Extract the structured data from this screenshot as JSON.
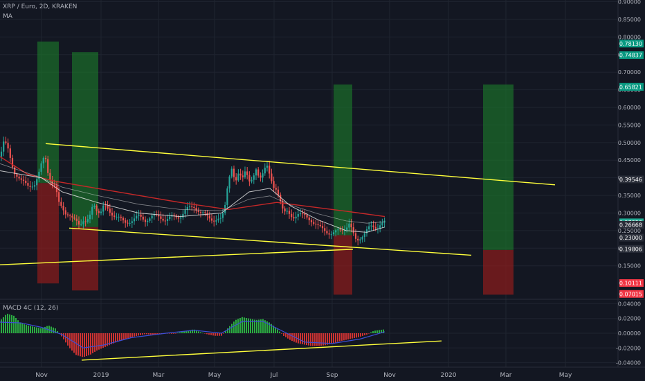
{
  "header": {
    "title": "XRP / Euro, 2D, KRAKEN",
    "ma_label": "MA",
    "macd_label": "MACD 4C (12, 26)"
  },
  "colors": {
    "background": "#131722",
    "grid": "#1f2430",
    "axis_text": "#b2b5be",
    "candle_up": "#26a69a",
    "candle_down": "#ef5350",
    "trendline": "#ffff3b",
    "ma_slow": "#c62828",
    "ma_fast": "#e0e0e0",
    "target_box": "#1b7a2a",
    "stop_box": "#8a1c1c",
    "badge_green": "#089981",
    "badge_red": "#f23645",
    "badge_teal": "#22ab94",
    "macd_up": "#2ebd45",
    "macd_down": "#e03535",
    "macd_line": "#3d4fd6"
  },
  "chart_data": [
    {
      "type": "candlestick",
      "x_axis_ticks": [
        "Nov",
        "2019",
        "Mar",
        "May",
        "Jul",
        "Sep",
        "Nov",
        "2020",
        "Mar",
        "May"
      ],
      "y_axis_ticks": [
        "0.90000",
        "0.85000",
        "0.80000",
        "0.75000",
        "0.70000",
        "0.65000",
        "0.60000",
        "0.55000",
        "0.50000",
        "0.45000",
        "0.40000",
        "0.35000",
        "0.30000",
        "0.25000",
        "0.20000",
        "0.15000"
      ],
      "ylim": [
        0.055,
        0.905
      ],
      "price_badges": [
        {
          "label": "0.78130",
          "value": 0.7813,
          "kind": "green"
        },
        {
          "label": "0.74837",
          "value": 0.74837,
          "kind": "green"
        },
        {
          "label": "0.65837",
          "value": 0.65837,
          "kind": "green"
        },
        {
          "label": "0.65821",
          "value": 0.65821,
          "kind": "green"
        },
        {
          "label": "0.39546",
          "value": 0.39546,
          "kind": "dark"
        },
        {
          "label": "0.27358",
          "value": 0.27358,
          "kind": "teal"
        },
        {
          "label": "0.26668",
          "value": 0.26668,
          "kind": "dark"
        },
        {
          "label": "0.23000",
          "value": 0.23,
          "kind": "dark"
        },
        {
          "label": "0.19806",
          "value": 0.19806,
          "kind": "dark"
        },
        {
          "label": "0.10111",
          "value": 0.10111,
          "kind": "red"
        },
        {
          "label": "0.07015",
          "value": 0.07015,
          "kind": "red"
        }
      ],
      "price_path": [
        [
          0,
          0.46
        ],
        [
          5,
          0.5
        ],
        [
          10,
          0.49
        ],
        [
          20,
          0.42
        ],
        [
          30,
          0.39
        ],
        [
          40,
          0.38
        ],
        [
          50,
          0.38
        ],
        [
          55,
          0.4
        ],
        [
          60,
          0.44
        ],
        [
          65,
          0.47
        ],
        [
          70,
          0.41
        ],
        [
          75,
          0.38
        ],
        [
          80,
          0.37
        ],
        [
          85,
          0.33
        ],
        [
          90,
          0.32
        ],
        [
          95,
          0.3
        ],
        [
          100,
          0.29
        ],
        [
          105,
          0.28
        ],
        [
          110,
          0.28
        ],
        [
          115,
          0.27
        ],
        [
          120,
          0.28
        ],
        [
          125,
          0.27
        ],
        [
          130,
          0.29
        ],
        [
          135,
          0.33
        ],
        [
          140,
          0.31
        ],
        [
          145,
          0.3
        ],
        [
          150,
          0.32
        ],
        [
          160,
          0.3
        ],
        [
          170,
          0.29
        ],
        [
          180,
          0.27
        ],
        [
          190,
          0.28
        ],
        [
          200,
          0.29
        ],
        [
          210,
          0.28
        ],
        [
          220,
          0.29
        ],
        [
          230,
          0.29
        ],
        [
          240,
          0.28
        ],
        [
          250,
          0.29
        ],
        [
          260,
          0.29
        ],
        [
          270,
          0.31
        ],
        [
          280,
          0.32
        ],
        [
          290,
          0.3
        ],
        [
          300,
          0.29
        ],
        [
          310,
          0.28
        ],
        [
          320,
          0.28
        ],
        [
          325,
          0.32
        ],
        [
          330,
          0.4
        ],
        [
          335,
          0.43
        ],
        [
          340,
          0.38
        ],
        [
          345,
          0.41
        ],
        [
          350,
          0.4
        ],
        [
          355,
          0.43
        ],
        [
          360,
          0.39
        ],
        [
          365,
          0.39
        ],
        [
          370,
          0.42
        ],
        [
          375,
          0.4
        ],
        [
          380,
          0.42
        ],
        [
          385,
          0.44
        ],
        [
          390,
          0.4
        ],
        [
          395,
          0.37
        ],
        [
          400,
          0.37
        ],
        [
          405,
          0.34
        ],
        [
          410,
          0.3
        ],
        [
          415,
          0.3
        ],
        [
          420,
          0.29
        ],
        [
          425,
          0.29
        ],
        [
          430,
          0.3
        ],
        [
          440,
          0.29
        ],
        [
          450,
          0.28
        ],
        [
          460,
          0.26
        ],
        [
          470,
          0.25
        ],
        [
          480,
          0.24
        ],
        [
          490,
          0.25
        ],
        [
          500,
          0.26
        ],
        [
          505,
          0.27
        ],
        [
          510,
          0.24
        ],
        [
          515,
          0.22
        ],
        [
          520,
          0.23
        ],
        [
          525,
          0.24
        ],
        [
          530,
          0.25
        ],
        [
          535,
          0.26
        ],
        [
          540,
          0.26
        ],
        [
          545,
          0.26
        ],
        [
          550,
          0.27
        ],
        [
          556,
          0.273
        ]
      ],
      "ma_slow": [
        [
          0,
          0.46
        ],
        [
          40,
          0.41
        ],
        [
          80,
          0.39
        ],
        [
          140,
          0.37
        ],
        [
          200,
          0.35
        ],
        [
          260,
          0.33
        ],
        [
          330,
          0.31
        ],
        [
          400,
          0.33
        ],
        [
          440,
          0.32
        ],
        [
          500,
          0.305
        ],
        [
          556,
          0.29
        ]
      ],
      "ma_fast": [
        [
          0,
          0.42
        ],
        [
          60,
          0.4
        ],
        [
          90,
          0.36
        ],
        [
          140,
          0.33
        ],
        [
          200,
          0.3
        ],
        [
          260,
          0.29
        ],
        [
          320,
          0.3
        ],
        [
          360,
          0.36
        ],
        [
          390,
          0.37
        ],
        [
          420,
          0.32
        ],
        [
          460,
          0.28
        ],
        [
          500,
          0.25
        ],
        [
          530,
          0.245
        ],
        [
          556,
          0.26
        ]
      ],
      "trendlines": [
        {
          "p1": [
            66,
            0.497
          ],
          "p2": [
            802,
            0.38
          ]
        },
        {
          "p1": [
            100,
            0.257
          ],
          "p2": [
            681,
            0.18
          ]
        },
        {
          "p1": [
            0,
            0.153
          ],
          "p2": [
            510,
            0.197
          ]
        }
      ],
      "target_boxes": [
        {
          "x1": 54,
          "x2": 85,
          "y_top": 0.787,
          "y_bottom": 0.385
        },
        {
          "x1": 104,
          "x2": 142,
          "y_top": 0.757,
          "y_bottom": 0.26
        },
        {
          "x1": 482,
          "x2": 509,
          "y_top": 0.665,
          "y_bottom": 0.237
        },
        {
          "x1": 698,
          "x2": 742,
          "y_top": 0.665,
          "y_bottom": 0.195
        }
      ],
      "stop_boxes": [
        {
          "x1": 54,
          "x2": 85,
          "y_top": 0.385,
          "y_bottom": 0.1
        },
        {
          "x1": 104,
          "x2": 142,
          "y_top": 0.26,
          "y_bottom": 0.08
        },
        {
          "x1": 482,
          "x2": 509,
          "y_top": 0.237,
          "y_bottom": 0.068
        },
        {
          "x1": 698,
          "x2": 742,
          "y_top": 0.195,
          "y_bottom": 0.068
        }
      ]
    },
    {
      "type": "bar",
      "title": "MACD 4C (12, 26)",
      "y_axis_ticks": [
        "0.04000",
        "0.02000",
        "0.00000",
        "-0.02000",
        "-0.04000"
      ],
      "ylim": [
        -0.046,
        0.046
      ],
      "histogram_path": [
        [
          0,
          0.018
        ],
        [
          10,
          0.028
        ],
        [
          20,
          0.025
        ],
        [
          30,
          0.015
        ],
        [
          40,
          0.012
        ],
        [
          50,
          0.01
        ],
        [
          60,
          0.008
        ],
        [
          70,
          0.012
        ],
        [
          80,
          0.008
        ],
        [
          90,
          -0.004
        ],
        [
          100,
          -0.018
        ],
        [
          110,
          -0.028
        ],
        [
          120,
          -0.031
        ],
        [
          130,
          -0.028
        ],
        [
          140,
          -0.022
        ],
        [
          150,
          -0.018
        ],
        [
          160,
          -0.014
        ],
        [
          170,
          -0.01
        ],
        [
          180,
          -0.007
        ],
        [
          190,
          -0.004
        ],
        [
          200,
          -0.002
        ],
        [
          210,
          0.0
        ],
        [
          220,
          -0.001
        ],
        [
          230,
          0.0
        ],
        [
          240,
          0.001
        ],
        [
          250,
          0.0
        ],
        [
          260,
          0.002
        ],
        [
          270,
          0.004
        ],
        [
          280,
          0.006
        ],
        [
          290,
          0.002
        ],
        [
          300,
          -0.001
        ],
        [
          310,
          -0.003
        ],
        [
          320,
          -0.003
        ],
        [
          330,
          0.008
        ],
        [
          340,
          0.018
        ],
        [
          350,
          0.022
        ],
        [
          360,
          0.02
        ],
        [
          370,
          0.018
        ],
        [
          380,
          0.019
        ],
        [
          390,
          0.014
        ],
        [
          400,
          0.006
        ],
        [
          410,
          -0.004
        ],
        [
          420,
          -0.01
        ],
        [
          430,
          -0.014
        ],
        [
          440,
          -0.016
        ],
        [
          450,
          -0.018
        ],
        [
          460,
          -0.018
        ],
        [
          470,
          -0.017
        ],
        [
          480,
          -0.015
        ],
        [
          490,
          -0.012
        ],
        [
          500,
          -0.01
        ],
        [
          510,
          -0.008
        ],
        [
          520,
          -0.006
        ],
        [
          530,
          -0.003
        ],
        [
          540,
          0.002
        ],
        [
          556,
          0.004
        ]
      ],
      "macd_line": [
        [
          0,
          0.015
        ],
        [
          30,
          0.014
        ],
        [
          60,
          0.008
        ],
        [
          90,
          -0.002
        ],
        [
          120,
          -0.02
        ],
        [
          150,
          -0.016
        ],
        [
          190,
          -0.006
        ],
        [
          240,
          0.0
        ],
        [
          280,
          0.004
        ],
        [
          320,
          0.0
        ],
        [
          350,
          0.016
        ],
        [
          380,
          0.016
        ],
        [
          410,
          0.002
        ],
        [
          440,
          -0.012
        ],
        [
          480,
          -0.014
        ],
        [
          520,
          -0.008
        ],
        [
          556,
          0.002
        ]
      ],
      "trendlines": [
        {
          "p1": [
            118,
            -0.0365
          ],
          "p2": [
            638,
            -0.0105
          ]
        }
      ]
    }
  ]
}
